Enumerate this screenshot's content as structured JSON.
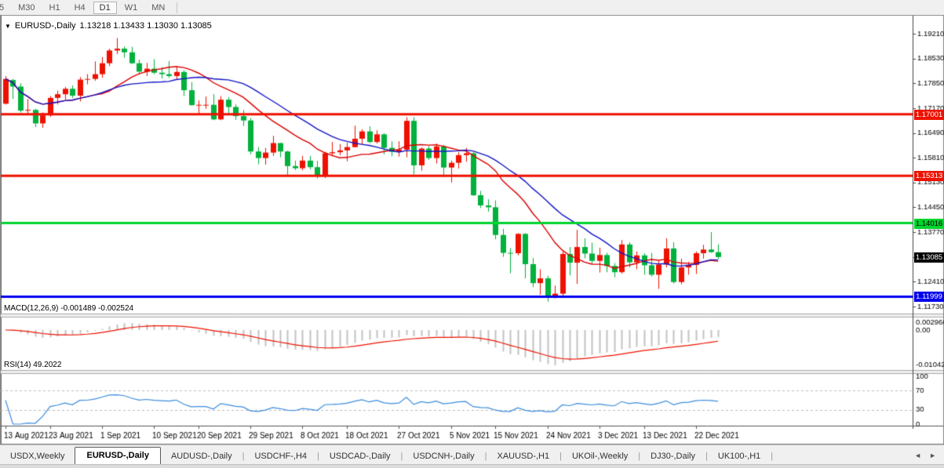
{
  "toolbar": {
    "timeframes": [
      "5",
      "M30",
      "H1",
      "H4",
      "D1",
      "W1",
      "MN"
    ],
    "active": "D1"
  },
  "chart_header": {
    "dropdown_icon": "▼",
    "symbol": "EURUSD-,Daily",
    "open": "1.13218",
    "high": "1.13433",
    "low": "1.13030",
    "close": "1.13085"
  },
  "chart_data": {
    "type": "candlestick",
    "title": "EURUSD-,Daily",
    "colors": {
      "bull": "#ee1100",
      "bear": "#00b13c",
      "ma_fast": "#dd0000",
      "ma_slow": "#1414c8",
      "macd_hist": "#c3c3c3",
      "macd_signal": "#ee1100",
      "rsi_line": "#3c8ddc",
      "axis_text": "#000000"
    },
    "price_axis": {
      "tick_labels": [
        "1.19210",
        "1.18530",
        "1.17850",
        "1.17170",
        "1.16490",
        "1.15810",
        "1.15130",
        "1.14450",
        "1.13770",
        "1.13090",
        "1.12410",
        "1.11730"
      ],
      "max_tick": 1.1921,
      "tick_step": 0.0068
    },
    "x_axis": {
      "ticks": [
        {
          "index": 0,
          "label": "13 Aug 2021"
        },
        {
          "index": 6,
          "label": "23 Aug 2021"
        },
        {
          "index": 13,
          "label": "1 Sep 2021"
        },
        {
          "index": 20,
          "label": "10 Sep 2021"
        },
        {
          "index": 26,
          "label": "20 Sep 2021"
        },
        {
          "index": 33,
          "label": "29 Sep 2021"
        },
        {
          "index": 40,
          "label": "8 Oct 2021"
        },
        {
          "index": 46,
          "label": "18 Oct 2021"
        },
        {
          "index": 53,
          "label": "27 Oct 2021"
        },
        {
          "index": 60,
          "label": "5 Nov 2021"
        },
        {
          "index": 66,
          "label": "15 Nov 2021"
        },
        {
          "index": 73,
          "label": "24 Nov 2021"
        },
        {
          "index": 80,
          "label": "3 Dec 2021"
        },
        {
          "index": 86,
          "label": "13 Dec 2021"
        },
        {
          "index": 93,
          "label": "22 Dec 2021"
        }
      ]
    },
    "candles": [
      [
        "13 Aug",
        1.1729,
        1.1805,
        1.1727,
        1.1797
      ],
      [
        "16 Aug",
        1.1794,
        1.1797,
        1.1742,
        1.1776
      ],
      [
        "17 Aug",
        1.1776,
        1.1785,
        1.1705,
        1.171
      ],
      [
        "18 Aug",
        1.171,
        1.1742,
        1.17,
        1.1712
      ],
      [
        "19 Aug",
        1.1712,
        1.1715,
        1.1665,
        1.1675
      ],
      [
        "20 Aug",
        1.1675,
        1.1705,
        1.1663,
        1.1697
      ],
      [
        "23 Aug",
        1.1697,
        1.175,
        1.1693,
        1.1745
      ],
      [
        "24 Aug",
        1.1745,
        1.1765,
        1.1727,
        1.1755
      ],
      [
        "25 Aug",
        1.1755,
        1.1775,
        1.174,
        1.177
      ],
      [
        "26 Aug",
        1.177,
        1.1779,
        1.1745,
        1.1751
      ],
      [
        "27 Aug",
        1.1751,
        1.1802,
        1.1735,
        1.1795
      ],
      [
        "30 Aug",
        1.1795,
        1.181,
        1.1782,
        1.1797
      ],
      [
        "31 Aug",
        1.1797,
        1.1845,
        1.1792,
        1.181
      ],
      [
        "1 Sep",
        1.181,
        1.1857,
        1.18,
        1.184
      ],
      [
        "2 Sep",
        1.184,
        1.188,
        1.1832,
        1.1875
      ],
      [
        "3 Sep",
        1.1875,
        1.1909,
        1.1865,
        1.188
      ],
      [
        "6 Sep",
        1.188,
        1.1886,
        1.1855,
        1.187
      ],
      [
        "7 Sep",
        1.187,
        1.1885,
        1.1838,
        1.184
      ],
      [
        "8 Sep",
        1.184,
        1.185,
        1.181,
        1.1817
      ],
      [
        "9 Sep",
        1.1817,
        1.1841,
        1.1805,
        1.1825
      ],
      [
        "10 Sep",
        1.1825,
        1.1851,
        1.181,
        1.1814
      ],
      [
        "13 Sep",
        1.1814,
        1.1829,
        1.1798,
        1.181
      ],
      [
        "14 Sep",
        1.181,
        1.1846,
        1.18,
        1.1805
      ],
      [
        "15 Sep",
        1.1805,
        1.1831,
        1.1795,
        1.1816
      ],
      [
        "16 Sep",
        1.1816,
        1.1821,
        1.175,
        1.1766
      ],
      [
        "17 Sep",
        1.1766,
        1.1788,
        1.1724,
        1.1725
      ],
      [
        "20 Sep",
        1.1725,
        1.1738,
        1.17,
        1.1726
      ],
      [
        "21 Sep",
        1.1726,
        1.1749,
        1.1715,
        1.1726
      ],
      [
        "22 Sep",
        1.1726,
        1.1755,
        1.1684,
        1.1686
      ],
      [
        "23 Sep",
        1.1686,
        1.175,
        1.1684,
        1.174
      ],
      [
        "24 Sep",
        1.174,
        1.1747,
        1.1701,
        1.172
      ],
      [
        "27 Sep",
        1.172,
        1.1727,
        1.1685,
        1.1695
      ],
      [
        "28 Sep",
        1.1695,
        1.1712,
        1.1668,
        1.1683
      ],
      [
        "29 Sep",
        1.1683,
        1.169,
        1.159,
        1.1598
      ],
      [
        "30 Sep",
        1.1598,
        1.161,
        1.1563,
        1.158
      ],
      [
        "1 Oct",
        1.158,
        1.1608,
        1.1562,
        1.1595
      ],
      [
        "4 Oct",
        1.1595,
        1.1641,
        1.1586,
        1.1621
      ],
      [
        "5 Oct",
        1.1621,
        1.1622,
        1.1582,
        1.1598
      ],
      [
        "6 Oct",
        1.1598,
        1.16,
        1.1529,
        1.1558
      ],
      [
        "7 Oct",
        1.1558,
        1.1573,
        1.1547,
        1.1552
      ],
      [
        "8 Oct",
        1.1552,
        1.1586,
        1.1546,
        1.1573
      ],
      [
        "11 Oct",
        1.1573,
        1.1586,
        1.1549,
        1.1555
      ],
      [
        "12 Oct",
        1.1555,
        1.1572,
        1.1524,
        1.153
      ],
      [
        "13 Oct",
        1.153,
        1.1597,
        1.1525,
        1.1593
      ],
      [
        "14 Oct",
        1.1593,
        1.1624,
        1.1585,
        1.1596
      ],
      [
        "15 Oct",
        1.1596,
        1.1618,
        1.1588,
        1.1601
      ],
      [
        "18 Oct",
        1.1601,
        1.1622,
        1.1571,
        1.161
      ],
      [
        "19 Oct",
        1.161,
        1.1669,
        1.1609,
        1.1633
      ],
      [
        "20 Oct",
        1.1633,
        1.1659,
        1.1617,
        1.1653
      ],
      [
        "21 Oct",
        1.1653,
        1.1667,
        1.1621,
        1.1624
      ],
      [
        "22 Oct",
        1.1624,
        1.1656,
        1.162,
        1.1645
      ],
      [
        "25 Oct",
        1.1645,
        1.1648,
        1.159,
        1.1608
      ],
      [
        "26 Oct",
        1.1608,
        1.1626,
        1.1585,
        1.1597
      ],
      [
        "27 Oct",
        1.1597,
        1.1626,
        1.1584,
        1.1603
      ],
      [
        "28 Oct",
        1.1603,
        1.1692,
        1.1582,
        1.1682
      ],
      [
        "29 Oct",
        1.1682,
        1.1692,
        1.1535,
        1.156
      ],
      [
        "1 Nov",
        1.156,
        1.1609,
        1.1545,
        1.1606
      ],
      [
        "2 Nov",
        1.1606,
        1.1613,
        1.1575,
        1.158
      ],
      [
        "3 Nov",
        1.158,
        1.162,
        1.1565,
        1.1612
      ],
      [
        "4 Nov",
        1.1612,
        1.1616,
        1.1528,
        1.1554
      ],
      [
        "5 Nov",
        1.1554,
        1.1573,
        1.1513,
        1.1567
      ],
      [
        "8 Nov",
        1.1567,
        1.1596,
        1.1551,
        1.1588
      ],
      [
        "9 Nov",
        1.1588,
        1.1608,
        1.157,
        1.1593
      ],
      [
        "10 Nov",
        1.1593,
        1.1597,
        1.1476,
        1.1478
      ],
      [
        "11 Nov",
        1.1478,
        1.149,
        1.1443,
        1.145
      ],
      [
        "12 Nov",
        1.145,
        1.1467,
        1.1433,
        1.1445
      ],
      [
        "15 Nov",
        1.1445,
        1.1464,
        1.1357,
        1.1369
      ],
      [
        "16 Nov",
        1.1369,
        1.1386,
        1.1309,
        1.132
      ],
      [
        "17 Nov",
        1.132,
        1.1333,
        1.1264,
        1.1319
      ],
      [
        "18 Nov",
        1.1319,
        1.1374,
        1.1313,
        1.1372
      ],
      [
        "19 Nov",
        1.1372,
        1.1374,
        1.125,
        1.1289
      ],
      [
        "22 Nov",
        1.1289,
        1.1306,
        1.1226,
        1.1237
      ],
      [
        "23 Nov",
        1.1237,
        1.1275,
        1.1205,
        1.125
      ],
      [
        "24 Nov",
        1.125,
        1.1257,
        1.1186,
        1.12
      ],
      [
        "25 Nov",
        1.12,
        1.123,
        1.1195,
        1.1208
      ],
      [
        "26 Nov",
        1.1208,
        1.1323,
        1.1203,
        1.1317
      ],
      [
        "29 Nov",
        1.1317,
        1.1336,
        1.1258,
        1.1293
      ],
      [
        "30 Nov",
        1.1293,
        1.1383,
        1.1235,
        1.1336
      ],
      [
        "1 Dec",
        1.1336,
        1.136,
        1.1305,
        1.1318
      ],
      [
        "2 Dec",
        1.1318,
        1.1348,
        1.129,
        1.1298
      ],
      [
        "3 Dec",
        1.1298,
        1.1334,
        1.1266,
        1.1314
      ],
      [
        "6 Dec",
        1.1314,
        1.132,
        1.1267,
        1.1284
      ],
      [
        "7 Dec",
        1.1284,
        1.1292,
        1.1253,
        1.1267
      ],
      [
        "8 Dec",
        1.1267,
        1.1355,
        1.1263,
        1.1343
      ],
      [
        "9 Dec",
        1.1343,
        1.1349,
        1.128,
        1.1294
      ],
      [
        "10 Dec",
        1.1294,
        1.1324,
        1.1275,
        1.1313
      ],
      [
        "13 Dec",
        1.1313,
        1.1319,
        1.126,
        1.1286
      ],
      [
        "14 Dec",
        1.1286,
        1.132,
        1.1255,
        1.126
      ],
      [
        "15 Dec",
        1.126,
        1.1298,
        1.1221,
        1.1288
      ],
      [
        "16 Dec",
        1.1288,
        1.136,
        1.128,
        1.1332
      ],
      [
        "17 Dec",
        1.1332,
        1.1349,
        1.1236,
        1.124
      ],
      [
        "20 Dec",
        1.124,
        1.1304,
        1.1234,
        1.128
      ],
      [
        "21 Dec",
        1.128,
        1.1295,
        1.126,
        1.1287
      ],
      [
        "22 Dec",
        1.1287,
        1.1324,
        1.1262,
        1.1319
      ],
      [
        "23 Dec",
        1.1319,
        1.1342,
        1.1304,
        1.1329
      ],
      [
        "27 Dec",
        1.1329,
        1.1377,
        1.132,
        1.1322
      ],
      [
        "28 Dec",
        1.13218,
        1.13433,
        1.1303,
        1.13085
      ]
    ],
    "moving_averages": [
      {
        "period": 13,
        "type": "sma",
        "color": "#dd0000"
      },
      {
        "period": 21,
        "type": "sma",
        "color": "#1414c8"
      }
    ],
    "hlines": [
      {
        "price": 1.17001,
        "label": "1.17001",
        "color": "#ee1100",
        "text": "#ffffff"
      },
      {
        "price": 1.15313,
        "label": "1.15313",
        "color": "#ee1100",
        "text": "#ffffff"
      },
      {
        "price": 1.14016,
        "label": "1.14016",
        "color": "#00d42e",
        "text": "#000000"
      },
      {
        "price": 1.11999,
        "label": "1.11999",
        "color": "#0000ee",
        "text": "#ffffff"
      }
    ],
    "current_price": {
      "value": 1.13085,
      "label": "1.13085",
      "bg": "#000000",
      "text": "#ffffff"
    },
    "macd": {
      "label": "MACD(12,26,9) -0.001489 -0.002524",
      "fast": 12,
      "slow": 26,
      "signal": 9,
      "main_value": -0.001489,
      "signal_value": -0.002524,
      "axis_max_label": "0.002966",
      "axis_zero_label": "0.00",
      "axis_min_label": "-0.01042",
      "axis_max": 0.002966,
      "axis_min": -0.01042
    },
    "rsi": {
      "label": "RSI(14) 49.2022",
      "period": 14,
      "value": 49.2022,
      "axis_labels": [
        "100",
        "70",
        "30",
        "0"
      ],
      "levels": [
        70,
        30
      ]
    }
  },
  "tabs": {
    "separator": "|",
    "items": [
      "USDX,Weekly",
      "EURUSD-,Daily",
      "AUDUSD-,Daily",
      "USDCHF-,H4",
      "USDCAD-,Daily",
      "USDCNH-,Daily",
      "XAUUSD-,H1",
      "UKOil-,Weekly",
      "DJ30-,Daily",
      "UK100-,H1"
    ],
    "active": "EURUSD-,Daily",
    "scroll_left_icon": "◄",
    "scroll_right_icon": "►"
  }
}
